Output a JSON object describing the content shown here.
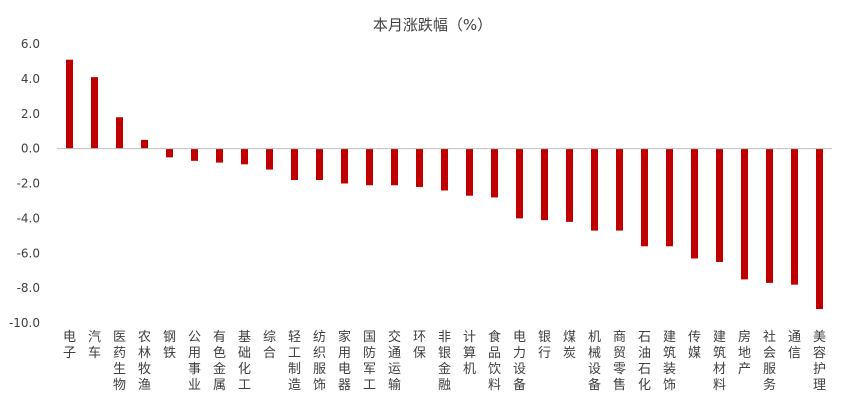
{
  "chart_data": {
    "type": "bar",
    "title": "本月涨跌幅（%）",
    "xlabel": "",
    "ylabel": "",
    "ylim": [
      -10,
      6
    ],
    "yticks": [
      "6.0",
      "4.0",
      "2.0",
      "0.0",
      "-2.0",
      "-4.0",
      "-6.0",
      "-8.0",
      "-10.0"
    ],
    "grid": false,
    "bar_color": "#C00000",
    "categories": [
      "电子",
      "汽车",
      "医药生物",
      "农林牧渔",
      "钢铁",
      "公用事业",
      "有色金属",
      "基础化工",
      "综合",
      "轻工制造",
      "纺织服饰",
      "家用电器",
      "国防军工",
      "交通运输",
      "环保",
      "非银金融",
      "计算机",
      "食品饮料",
      "电力设备",
      "银行",
      "煤炭",
      "机械设备",
      "商贸零售",
      "石油石化",
      "建筑装饰",
      "传媒",
      "建筑材料",
      "房地产",
      "社会服务",
      "通信",
      "美容护理"
    ],
    "values": [
      5.1,
      4.1,
      1.8,
      0.5,
      -0.5,
      -0.7,
      -0.8,
      -0.9,
      -1.2,
      -1.8,
      -1.8,
      -2.0,
      -2.1,
      -2.1,
      -2.2,
      -2.4,
      -2.7,
      -2.8,
      -4.0,
      -4.1,
      -4.2,
      -4.7,
      -4.7,
      -5.6,
      -5.6,
      -6.3,
      -6.5,
      -7.5,
      -7.7,
      -7.8,
      -9.2
    ]
  }
}
